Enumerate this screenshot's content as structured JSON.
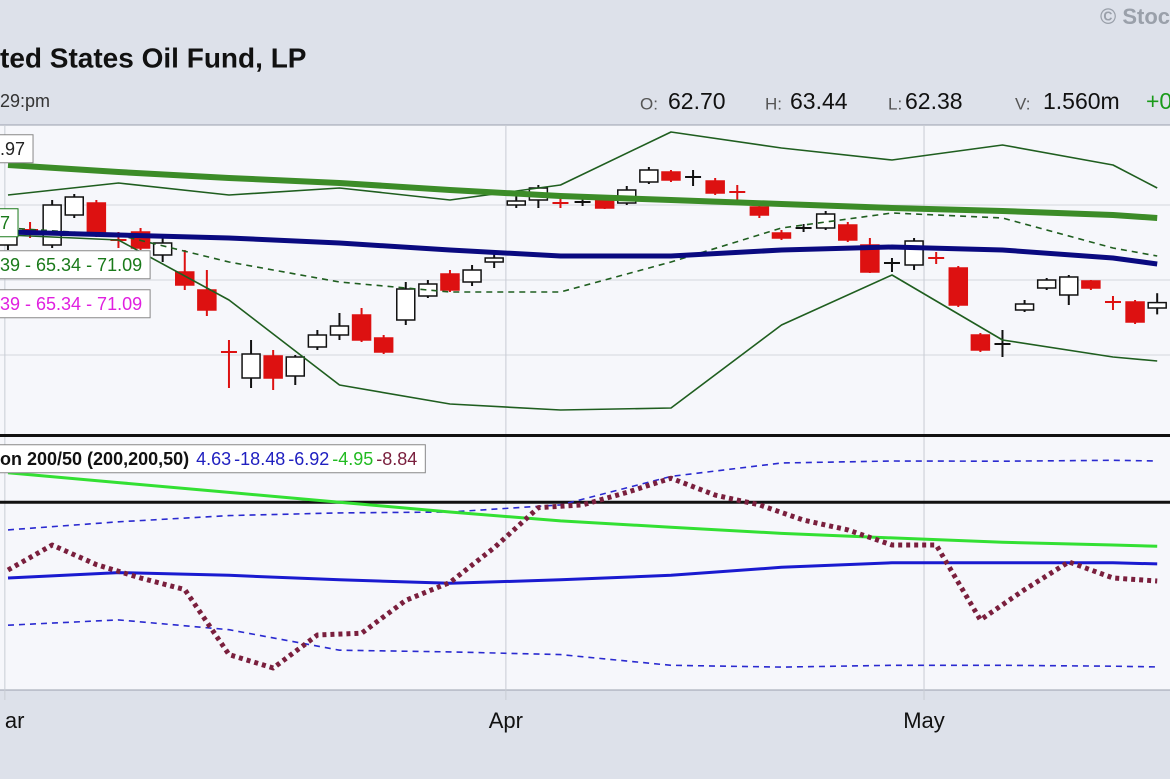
{
  "header": {
    "title": "ted States Oil Fund, LP",
    "time": "29:pm",
    "copyright": "© Stoc",
    "quote": [
      {
        "key": "O:",
        "value": "62.70"
      },
      {
        "key": "H:",
        "value": "63.44"
      },
      {
        "key": "L:",
        "value": "62.38"
      },
      {
        "key": "V:",
        "value": "1.560m"
      }
    ],
    "change": "+0"
  },
  "chart_data": [
    {
      "type": "candlestick",
      "xlim": [
        -0.36,
        52.58
      ],
      "ylim": [
        56.5,
        71.85
      ],
      "xticks": [
        {
          "value": -0.14,
          "label": "ar"
        },
        {
          "value": 22.53,
          "label": "Apr"
        },
        {
          "value": 41.45,
          "label": "May"
        }
      ],
      "up_color": "#ffffff",
      "down_color": "#dd1111",
      "open": [
        65.85,
        66.6,
        65.85,
        67.35,
        67.95,
        66.1,
        66.5,
        65.35,
        64.5,
        63.6,
        60.5,
        59.2,
        60.3,
        59.3,
        60.75,
        61.35,
        62.35,
        61.2,
        62.1,
        63.3,
        64.4,
        64.0,
        65.0,
        67.85,
        68.1,
        67.95,
        68.0,
        68.1,
        67.95,
        69.0,
        69.5,
        69.25,
        69.05,
        68.5,
        67.75,
        66.45,
        66.7,
        66.7,
        66.85,
        65.85,
        64.95,
        64.85,
        65.2,
        64.7,
        61.35,
        60.9,
        62.6,
        63.7,
        63.35,
        64.05,
        63.0,
        63.0,
        62.7
      ],
      "high": [
        67.35,
        67.0,
        68.1,
        68.4,
        68.1,
        66.5,
        66.7,
        66.2,
        65.6,
        64.6,
        61.1,
        61.1,
        60.6,
        60.35,
        61.6,
        62.45,
        62.7,
        61.35,
        64.0,
        64.1,
        64.6,
        64.85,
        65.6,
        68.3,
        68.85,
        68.35,
        68.2,
        68.2,
        68.8,
        69.75,
        69.6,
        69.6,
        69.2,
        68.85,
        67.95,
        66.6,
        66.9,
        67.55,
        67.0,
        66.2,
        65.2,
        66.2,
        65.5,
        64.8,
        61.45,
        61.6,
        63.1,
        64.2,
        64.35,
        64.1,
        63.3,
        63.1,
        63.44
      ],
      "low": [
        65.6,
        66.2,
        65.7,
        67.2,
        66.25,
        65.7,
        65.6,
        65.0,
        63.6,
        62.3,
        58.7,
        58.7,
        58.6,
        58.85,
        60.6,
        61.1,
        61.0,
        60.4,
        61.85,
        63.2,
        63.5,
        63.8,
        64.7,
        67.7,
        67.7,
        67.7,
        67.8,
        67.65,
        67.85,
        68.9,
        69.0,
        68.8,
        68.35,
        68.1,
        67.2,
        66.1,
        66.5,
        66.6,
        66.0,
        64.45,
        64.5,
        64.6,
        64.9,
        62.75,
        60.5,
        60.25,
        62.5,
        63.6,
        62.85,
        63.6,
        62.6,
        61.9,
        62.38
      ],
      "close": [
        66.85,
        66.55,
        67.85,
        68.25,
        66.45,
        66.05,
        65.7,
        65.95,
        63.85,
        62.6,
        60.45,
        60.4,
        59.2,
        60.25,
        61.35,
        61.8,
        61.1,
        60.5,
        63.65,
        63.9,
        63.6,
        64.6,
        65.2,
        68.05,
        68.7,
        67.9,
        68.0,
        67.7,
        68.6,
        69.6,
        69.1,
        69.25,
        68.45,
        68.45,
        67.35,
        66.2,
        66.7,
        67.4,
        66.1,
        64.5,
        64.95,
        66.05,
        65.15,
        62.85,
        60.6,
        60.9,
        62.9,
        64.1,
        64.25,
        63.7,
        62.95,
        62.0,
        62.97
      ],
      "lines": [
        {
          "color": "#1f5e1f",
          "style": "thin",
          "x": [
            0,
            5,
            10,
            15,
            20,
            25,
            30,
            35,
            40,
            45,
            50,
            52
          ],
          "values": [
            68.35,
            68.95,
            68.35,
            68.7,
            68.1,
            68.85,
            71.5,
            70.7,
            70.1,
            70.85,
            69.85,
            68.7
          ]
        },
        {
          "color": "#1f5e1f",
          "style": "thin",
          "x": [
            0,
            5,
            10,
            15,
            20,
            25,
            30,
            35,
            40,
            45,
            50,
            52
          ],
          "values": [
            66.35,
            66.1,
            63.1,
            58.85,
            57.9,
            57.6,
            57.7,
            61.85,
            64.35,
            61.1,
            60.25,
            60.05
          ]
        },
        {
          "color": "#1f5e1f",
          "style": "dashed",
          "x": [
            0,
            5,
            10,
            15,
            20,
            25,
            30,
            35,
            40,
            45,
            50,
            52
          ],
          "values": [
            66.7,
            66.35,
            65.0,
            64.0,
            63.5,
            63.5,
            65.0,
            66.7,
            67.45,
            67.2,
            65.7,
            65.3
          ]
        },
        {
          "color": "#3c8c28",
          "style": "thick",
          "x": [
            0,
            5,
            10,
            15,
            20,
            25,
            30,
            35,
            40,
            45,
            50,
            52
          ],
          "values": [
            69.85,
            69.5,
            69.2,
            68.95,
            68.6,
            68.3,
            68.1,
            67.9,
            67.7,
            67.55,
            67.35,
            67.2
          ]
        },
        {
          "color": "#0a0a80",
          "style": "heavy",
          "x": [
            0,
            5,
            10,
            15,
            20,
            25,
            30,
            35,
            40,
            45,
            50,
            52
          ],
          "values": [
            66.5,
            66.35,
            66.2,
            65.95,
            65.6,
            65.3,
            65.3,
            65.6,
            65.75,
            65.6,
            65.2,
            64.9
          ]
        }
      ],
      "legend": [
        {
          "label": ".97",
          "color": "#222222"
        },
        {
          "label": "7",
          "color": "#1a7a1a"
        },
        {
          "label": "39 - 65.34 - 71.09",
          "color": "#1a7a1a"
        },
        {
          "label": "39 - 65.34 - 71.09",
          "color": "#e020e0"
        }
      ]
    },
    {
      "type": "line",
      "label": "on 200/50 (200,200,50)",
      "readouts": [
        {
          "value": 4.63,
          "color": "#2020c0"
        },
        {
          "value": -18.48,
          "color": "#2020c0"
        },
        {
          "value": -6.92,
          "color": "#2020c0"
        },
        {
          "value": -4.95,
          "color": "#22bb22"
        },
        {
          "value": -8.84,
          "color": "#7a1f3d"
        }
      ],
      "xlim": [
        -0.36,
        52.58
      ],
      "ylim": [
        -21.07,
        7.32
      ],
      "zero_line": true,
      "series": [
        {
          "color": "#2a2ad0",
          "style": "dashed",
          "x": [
            0,
            5,
            10,
            15,
            20,
            25,
            30,
            35,
            40,
            45,
            50,
            52
          ],
          "values": [
            -3.1,
            -2.2,
            -1.5,
            -1.2,
            -1.1,
            -0.3,
            2.9,
            4.4,
            4.63,
            4.6,
            4.7,
            4.63
          ]
        },
        {
          "color": "#2a2ad0",
          "style": "dashed",
          "x": [
            0,
            5,
            10,
            15,
            20,
            25,
            30,
            35,
            40,
            45,
            50,
            52
          ],
          "values": [
            -13.8,
            -13.2,
            -14.3,
            -16.6,
            -16.8,
            -17.1,
            -18.3,
            -18.5,
            -18.3,
            -18.3,
            -18.4,
            -18.48
          ]
        },
        {
          "color": "#33e033",
          "style": "solid",
          "x": [
            0,
            5,
            10,
            15,
            20,
            25,
            30,
            35,
            40,
            45,
            50,
            52
          ],
          "values": [
            3.3,
            2.2,
            1.1,
            0.0,
            -1.1,
            -2.1,
            -2.8,
            -3.5,
            -4.0,
            -4.5,
            -4.8,
            -4.95
          ]
        },
        {
          "color": "#1a1ad0",
          "style": "solid",
          "x": [
            0,
            5,
            10,
            15,
            20,
            25,
            30,
            35,
            40,
            45,
            50,
            52
          ],
          "values": [
            -8.5,
            -7.9,
            -8.2,
            -8.7,
            -9.1,
            -8.7,
            -8.2,
            -7.3,
            -6.8,
            -6.8,
            -6.8,
            -6.92
          ]
        },
        {
          "color": "#7a1f3d",
          "style": "dotted",
          "x": [
            0,
            2,
            4,
            6,
            8,
            10,
            12,
            14,
            16,
            18,
            20,
            22,
            24,
            26,
            28,
            30,
            32,
            34,
            36,
            38,
            40,
            42,
            44,
            46,
            48,
            50,
            52
          ],
          "values": [
            -7.6,
            -4.8,
            -7.0,
            -8.5,
            -9.8,
            -17.1,
            -18.6,
            -14.9,
            -14.7,
            -11.0,
            -9.0,
            -5.1,
            -0.6,
            -0.3,
            1.1,
            2.7,
            0.8,
            -0.3,
            -2.0,
            -3.1,
            -4.8,
            -4.8,
            -13.2,
            -9.8,
            -6.7,
            -8.5,
            -8.84
          ]
        }
      ]
    }
  ]
}
